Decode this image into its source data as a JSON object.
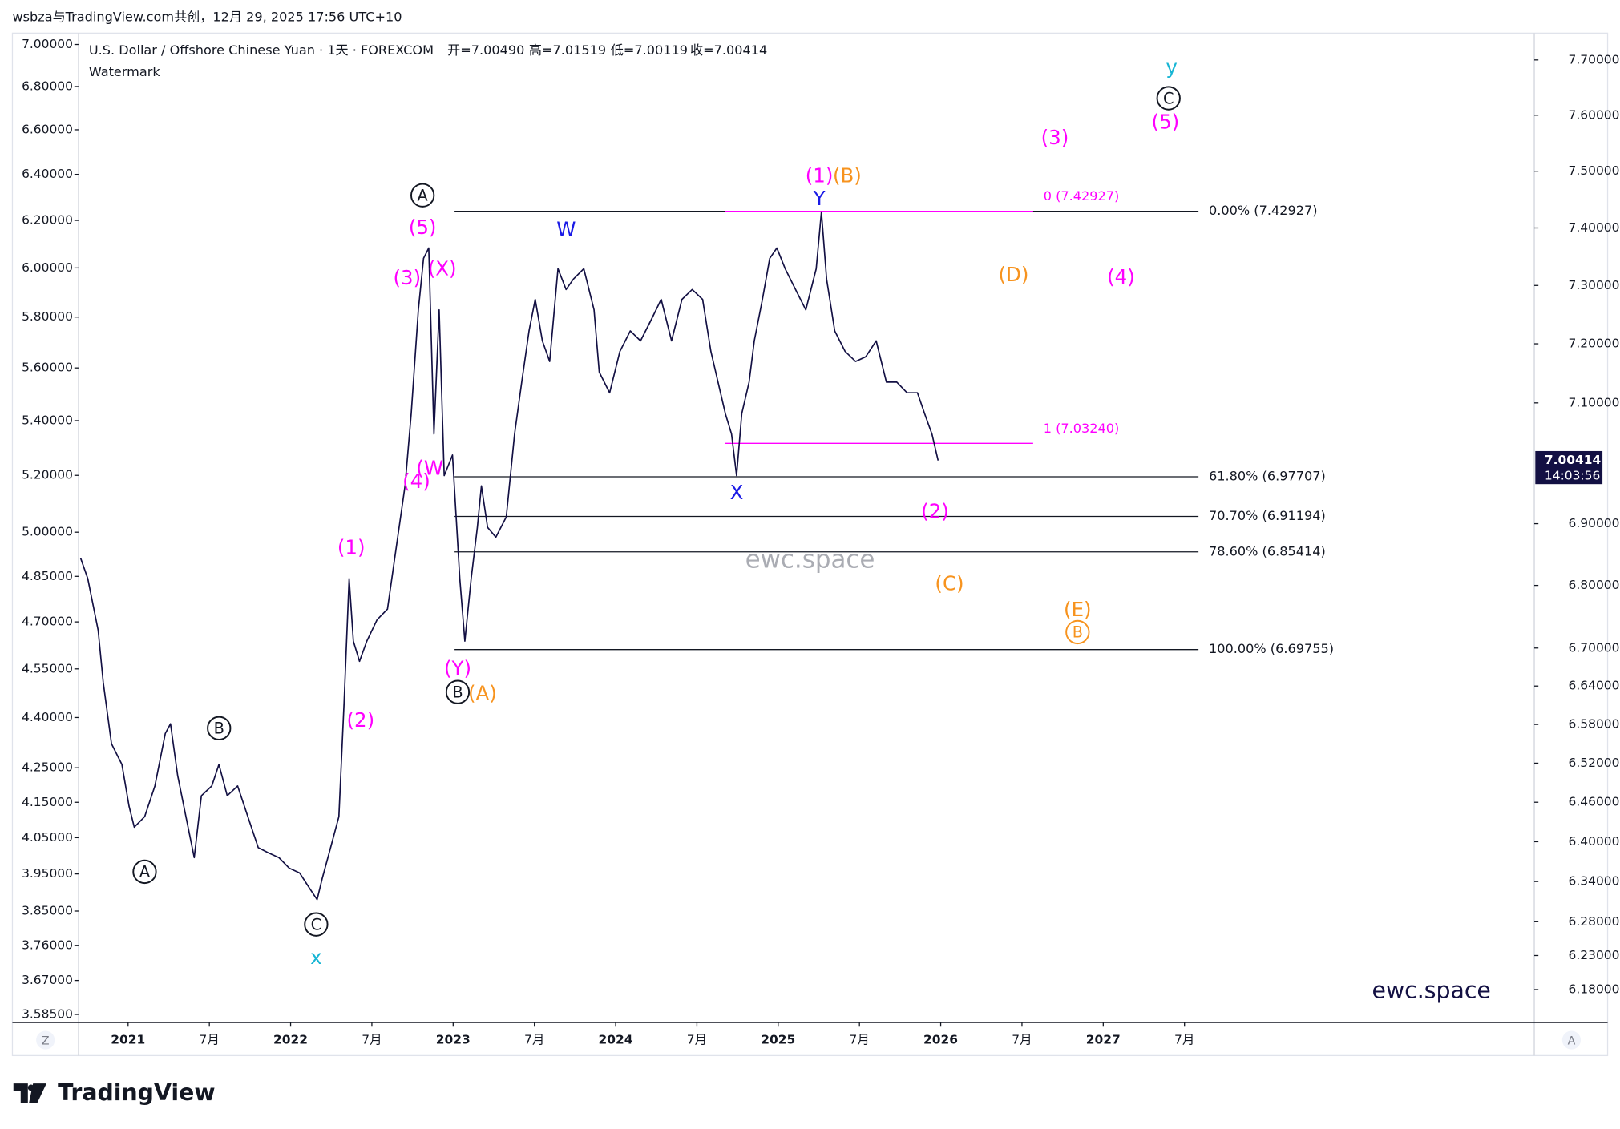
{
  "header": {
    "credit": "wsbza与TradingView.com共创，12月 29, 2025 17:56 UTC+10",
    "symbol": "U.S. Dollar / Offshore Chinese Yuan · 1天 · FOREXCOM",
    "open": "开=7.00490",
    "high": "高=7.01519",
    "low": "低=7.00119",
    "close": "收=7.00414",
    "watermark_label": "Watermark"
  },
  "chart_data": {
    "type": "line",
    "log_scale": true,
    "x": [
      2020.708,
      2020.752,
      2020.816,
      2020.847,
      2020.898,
      2020.962,
      2021.006,
      2021.038,
      2021.102,
      2021.165,
      2021.229,
      2021.261,
      2021.305,
      2021.356,
      2021.407,
      2021.451,
      2021.515,
      2021.559,
      2021.61,
      2021.674,
      2021.737,
      2021.801,
      2021.865,
      2021.928,
      2021.992,
      2022.055,
      2022.119,
      2022.163,
      2022.195,
      2022.246,
      2022.297,
      2022.329,
      2022.36,
      2022.386,
      2022.424,
      2022.469,
      2022.532,
      2022.596,
      2022.659,
      2022.704,
      2022.742,
      2022.786,
      2022.818,
      2022.85,
      2022.882,
      2022.914,
      2022.945,
      2022.996,
      2023.041,
      2023.072,
      2023.111,
      2023.149,
      2023.174,
      2023.212,
      2023.263,
      2023.327,
      2023.378,
      2023.422,
      2023.467,
      2023.505,
      2023.549,
      2023.594,
      2023.645,
      2023.695,
      2023.74,
      2023.804,
      2023.867,
      2023.899,
      2023.963,
      2024.026,
      2024.09,
      2024.153,
      2024.217,
      2024.28,
      2024.344,
      2024.408,
      2024.471,
      2024.535,
      2024.586,
      2024.63,
      2024.675,
      2024.713,
      2024.744,
      2024.776,
      2024.821,
      2024.853,
      2024.903,
      2024.948,
      2024.992,
      2025.043,
      2025.107,
      2025.17,
      2025.234,
      2025.266,
      2025.298,
      2025.348,
      2025.412,
      2025.476,
      2025.539,
      2025.603,
      2025.666,
      2025.73,
      2025.793,
      2025.857,
      2025.901,
      2025.946,
      2025.984
    ],
    "series": [
      {
        "name": "U.S. Dollar / Offshore Chinese Yuan",
        "color": "#131043",
        "values": [
          6.844,
          6.811,
          6.728,
          6.646,
          6.55,
          6.518,
          6.454,
          6.422,
          6.438,
          6.485,
          6.566,
          6.581,
          6.501,
          6.438,
          6.376,
          6.47,
          6.485,
          6.518,
          6.47,
          6.485,
          6.438,
          6.391,
          6.383,
          6.376,
          6.36,
          6.353,
          6.329,
          6.313,
          6.345,
          6.391,
          6.438,
          6.614,
          6.811,
          6.711,
          6.679,
          6.711,
          6.745,
          6.762,
          6.878,
          6.962,
          7.082,
          7.258,
          7.347,
          7.365,
          7.048,
          7.258,
          6.979,
          7.013,
          6.811,
          6.711,
          6.811,
          6.894,
          6.962,
          6.894,
          6.878,
          6.911,
          7.048,
          7.135,
          7.222,
          7.276,
          7.205,
          7.17,
          7.329,
          7.293,
          7.311,
          7.329,
          7.258,
          7.152,
          7.117,
          7.187,
          7.222,
          7.205,
          7.24,
          7.276,
          7.205,
          7.276,
          7.293,
          7.276,
          7.187,
          7.135,
          7.082,
          7.048,
          6.979,
          7.082,
          7.135,
          7.205,
          7.276,
          7.347,
          7.365,
          7.329,
          7.293,
          7.258,
          7.329,
          7.428,
          7.311,
          7.222,
          7.187,
          7.17,
          7.178,
          7.205,
          7.135,
          7.135,
          7.117,
          7.117,
          7.082,
          7.048,
          7.004
        ]
      }
    ],
    "xlim": [
      2020.695,
      2029.652
    ],
    "xticks": [
      2021,
      {
        "value": 2021.5,
        "label": "7月"
      },
      2022,
      {
        "value": 2022.5,
        "label": "7月"
      },
      2023,
      {
        "value": 2023.5,
        "label": "7月"
      },
      2024,
      {
        "value": 2024.5,
        "label": "7月"
      },
      2025,
      {
        "value": 2025.5,
        "label": "7月"
      },
      2026,
      {
        "value": 2026.5,
        "label": "7月"
      },
      2027,
      {
        "value": 2027.5,
        "label": "7月"
      }
    ],
    "ylim": [
      6.132,
      7.749
    ],
    "yticks": [
      {
        "value": 7.7,
        "label": "7.70000"
      },
      {
        "value": 7.6,
        "label": "7.60000"
      },
      {
        "value": 7.5,
        "label": "7.50000"
      },
      {
        "value": 7.4,
        "label": "7.40000"
      },
      {
        "value": 7.3,
        "label": "7.30000"
      },
      {
        "value": 7.2,
        "label": "7.20000"
      },
      {
        "value": 7.1,
        "label": "7.10000"
      },
      {
        "value": 6.9,
        "label": "6.90000"
      },
      {
        "value": 6.8,
        "label": "6.80000"
      },
      {
        "value": 6.7,
        "label": "6.70000"
      },
      {
        "value": 6.64,
        "label": "6.64000"
      },
      {
        "value": 6.58,
        "label": "6.58000"
      },
      {
        "value": 6.52,
        "label": "6.52000"
      },
      {
        "value": 6.46,
        "label": "6.46000"
      },
      {
        "value": 6.4,
        "label": "6.40000"
      },
      {
        "value": 6.34,
        "label": "6.34000"
      },
      {
        "value": 6.28,
        "label": "6.28000"
      },
      {
        "value": 6.23,
        "label": "6.23000"
      },
      {
        "value": 6.18,
        "label": "6.18000"
      }
    ],
    "y2lim": [
      3.565,
      7.055
    ],
    "y2ticks": [
      {
        "value": 7,
        "label": "7.00000"
      },
      {
        "value": 6.8,
        "label": "6.80000"
      },
      {
        "value": 6.6,
        "label": "6.60000"
      },
      {
        "value": 6.4,
        "label": "6.40000"
      },
      {
        "value": 6.2,
        "label": "6.20000"
      },
      {
        "value": 6,
        "label": "6.00000"
      },
      {
        "value": 5.8,
        "label": "5.80000"
      },
      {
        "value": 5.6,
        "label": "5.60000"
      },
      {
        "value": 5.4,
        "label": "5.40000"
      },
      {
        "value": 5.2,
        "label": "5.20000"
      },
      {
        "value": 5,
        "label": "5.00000"
      },
      {
        "value": 4.85,
        "label": "4.85000"
      },
      {
        "value": 4.7,
        "label": "4.70000"
      },
      {
        "value": 4.55,
        "label": "4.55000"
      },
      {
        "value": 4.4,
        "label": "4.40000"
      },
      {
        "value": 4.25,
        "label": "4.25000"
      },
      {
        "value": 4.15,
        "label": "4.15000"
      },
      {
        "value": 4.05,
        "label": "4.05000"
      },
      {
        "value": 3.95,
        "label": "3.95000"
      },
      {
        "value": 3.85,
        "label": "3.85000"
      },
      {
        "value": 3.76,
        "label": "3.76000"
      },
      {
        "value": 3.67,
        "label": "3.67000"
      },
      {
        "value": 3.585,
        "label": "3.58500"
      }
    ],
    "last_price": {
      "value": 7.00414,
      "label": "7.00414",
      "countdown": "14:03:56",
      "color": "#131043"
    },
    "fib_levels": [
      {
        "label": "0.00% (7.42927)",
        "value": 7.42927,
        "color": "#131722"
      },
      {
        "label": "61.80% (6.97707)",
        "value": 6.97707,
        "color": "#131722"
      },
      {
        "label": "70.70% (6.91194)",
        "value": 6.91194,
        "color": "#131722"
      },
      {
        "label": "78.60% (6.85414)",
        "value": 6.85414,
        "color": "#131722"
      },
      {
        "label": "100.00% (6.69755)",
        "value": 6.69755,
        "color": "#131722"
      }
    ],
    "projection_levels": [
      {
        "label": "0 (7.42927)",
        "value": 7.42927,
        "color": "#ff00ff"
      },
      {
        "label": "1 (7.03240)",
        "value": 7.0324,
        "color": "#ff00ff"
      }
    ],
    "annotations": [
      {
        "text": "(1)",
        "color": "#ff00ff",
        "circled": false
      },
      {
        "text": "(2)",
        "color": "#ff00ff",
        "circled": false
      },
      {
        "text": "(3)",
        "color": "#ff00ff",
        "circled": false
      },
      {
        "text": "(4)",
        "color": "#ff00ff",
        "circled": false
      },
      {
        "text": "(5)",
        "color": "#ff00ff",
        "circled": false
      },
      {
        "text": "(X)",
        "color": "#ff00ff",
        "circled": false
      },
      {
        "text": "(W",
        "color": "#ff00ff",
        "circled": false
      },
      {
        "text": "(Y)",
        "color": "#ff00ff",
        "circled": false
      },
      {
        "text": "(1)",
        "color": "#ff00ff",
        "circled": false
      },
      {
        "text": "(2)",
        "color": "#ff00ff",
        "circled": false
      },
      {
        "text": "(3)",
        "color": "#ff00ff",
        "circled": false
      },
      {
        "text": "(4)",
        "color": "#ff00ff",
        "circled": false
      },
      {
        "text": "(5)",
        "color": "#ff00ff",
        "circled": false
      },
      {
        "text": "(B)",
        "color": "#f7931e",
        "circled": false
      },
      {
        "text": "(A)",
        "color": "#f7931e",
        "circled": false
      },
      {
        "text": "(D)",
        "color": "#f7931e",
        "circled": false
      },
      {
        "text": "(C)",
        "color": "#f7931e",
        "circled": false
      },
      {
        "text": "(E)",
        "color": "#f7931e",
        "circled": false
      },
      {
        "text": "B",
        "color": "#f7931e",
        "circled": true
      },
      {
        "text": "A",
        "color": "#131722",
        "circled": true
      },
      {
        "text": "B",
        "color": "#131722",
        "circled": true
      },
      {
        "text": "C",
        "color": "#131722",
        "circled": true
      },
      {
        "text": "A",
        "color": "#131722",
        "circled": true
      },
      {
        "text": "B",
        "color": "#131722",
        "circled": true
      },
      {
        "text": "C",
        "color": "#131722",
        "circled": true
      },
      {
        "text": "W",
        "color": "#1a1ae6",
        "circled": false
      },
      {
        "text": "Y",
        "color": "#1a1ae6",
        "circled": false
      },
      {
        "text": "X",
        "color": "#1a1ae6",
        "circled": false
      },
      {
        "text": "x",
        "color": "#17b5d4",
        "circled": false
      },
      {
        "text": "y",
        "color": "#17b5d4",
        "circled": false
      }
    ],
    "watermark": "ewc.space",
    "signature": "ewc.space"
  },
  "footer": {
    "brand": "TradingView",
    "axis_button_left": "Z",
    "axis_button_right": "A"
  }
}
